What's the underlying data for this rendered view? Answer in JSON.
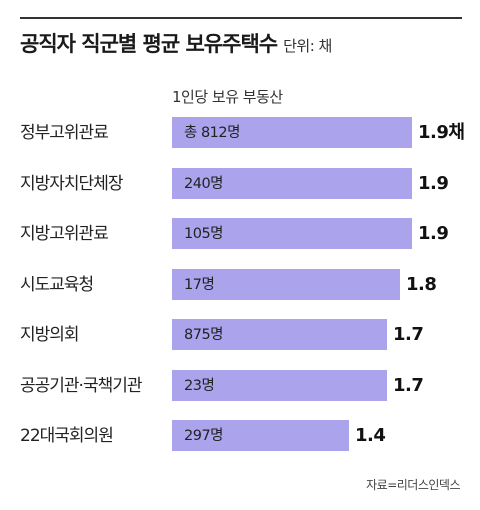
{
  "header": {
    "title": "공직자 직군별 평균 보유주택수",
    "unit": "단위: 채"
  },
  "column_header": "1인당 보유 부동산",
  "source": "자료=리더스인덱스",
  "colors": {
    "bar": "#aba4ed",
    "rule": "#333333"
  },
  "chart_data": {
    "type": "bar",
    "orientation": "horizontal",
    "title": "공직자 직군별 평균 보유주택수",
    "unit": "채",
    "categories": [
      "정부고위관료",
      "지방자치단체장",
      "지방고위관료",
      "시도교육청",
      "지방의회",
      "공공기관·국책기관",
      "22대국회의원"
    ],
    "values": [
      1.9,
      1.9,
      1.9,
      1.8,
      1.7,
      1.7,
      1.4
    ],
    "value_labels": [
      "1.9채",
      "1.9",
      "1.9",
      "1.8",
      "1.7",
      "1.7",
      "1.4"
    ],
    "bar_labels": [
      "총 812명",
      "240명",
      "105명",
      "17명",
      "875명",
      "23명",
      "297명"
    ],
    "grid": false,
    "legend": "none"
  }
}
